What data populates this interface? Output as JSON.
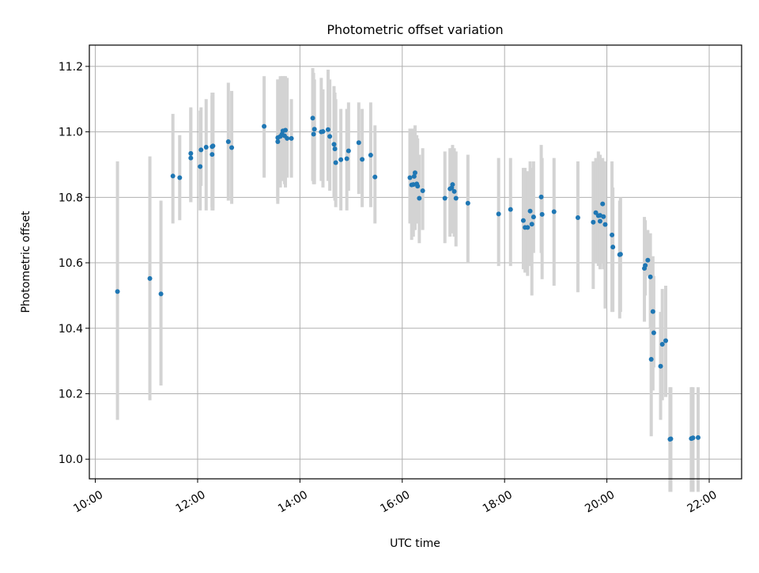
{
  "chart_data": {
    "type": "scatter",
    "title": "Photometric offset variation",
    "xlabel": "UTC time",
    "ylabel": "Photometric offset",
    "x_unit": "UTC hours",
    "xlim": [
      "09:53",
      "22:38"
    ],
    "ylim": [
      9.94,
      11.265
    ],
    "x_ticks": [
      "10:00",
      "12:00",
      "14:00",
      "16:00",
      "18:00",
      "20:00",
      "22:00"
    ],
    "y_ticks": [
      "10.0",
      "10.2",
      "10.4",
      "10.6",
      "10.8",
      "11.0",
      "11.2"
    ],
    "grid": true,
    "marker_color": "#1f77b4",
    "errorbar_color": "#d3d3d3",
    "series": [
      {
        "x": [
          "10:26",
          "11:04",
          "11:17",
          "11:31",
          "11:39",
          "11:52",
          "11:52",
          "12:03",
          "12:04",
          "12:10",
          "12:17",
          "12:17",
          "12:18",
          "12:36",
          "12:40",
          "13:18",
          "13:34",
          "13:34",
          "13:37",
          "13:39",
          "13:40",
          "13:42",
          "13:43",
          "13:45",
          "13:50",
          "14:15",
          "14:16",
          "14:17",
          "14:25",
          "14:27",
          "14:33",
          "14:35",
          "14:40",
          "14:41",
          "14:42",
          "14:48",
          "14:55",
          "14:57",
          "15:09",
          "15:13",
          "15:23",
          "15:28",
          "16:09",
          "16:11",
          "16:13",
          "16:14",
          "16:15",
          "16:17",
          "16:18",
          "16:20",
          "16:24",
          "16:50",
          "16:56",
          "16:58",
          "16:59",
          "17:01",
          "17:03",
          "17:17",
          "17:53",
          "18:07",
          "18:22",
          "18:24",
          "18:27",
          "18:30",
          "18:32",
          "18:34",
          "18:43",
          "18:44",
          "18:58",
          "19:26",
          "19:44",
          "19:47",
          "19:50",
          "19:52",
          "19:52",
          "19:55",
          "19:56",
          "19:58",
          "20:06",
          "20:07",
          "20:15",
          "20:16",
          "20:44",
          "20:45",
          "20:48",
          "20:51",
          "20:52",
          "20:54",
          "20:55",
          "21:03",
          "21:05",
          "21:09",
          "21:14",
          "21:15",
          "21:39",
          "21:40",
          "21:41",
          "21:47"
        ],
        "y": [
          10.512,
          10.552,
          10.505,
          10.865,
          10.86,
          10.934,
          10.92,
          10.894,
          10.945,
          10.953,
          10.955,
          10.931,
          10.957,
          10.97,
          10.952,
          11.017,
          10.97,
          10.982,
          10.986,
          10.993,
          11.003,
          10.988,
          11.005,
          10.98,
          10.98,
          11.042,
          10.993,
          11.008,
          11.0,
          11.001,
          11.007,
          10.986,
          10.962,
          10.948,
          10.906,
          10.915,
          10.918,
          10.942,
          10.967,
          10.916,
          10.929,
          10.862,
          10.86,
          10.838,
          10.839,
          10.864,
          10.875,
          10.841,
          10.834,
          10.797,
          10.82,
          10.797,
          10.826,
          10.829,
          10.839,
          10.818,
          10.797,
          10.782,
          10.749,
          10.763,
          10.729,
          10.708,
          10.708,
          10.758,
          10.718,
          10.74,
          10.801,
          10.748,
          10.756,
          10.738,
          10.724,
          10.753,
          10.744,
          10.727,
          10.745,
          10.78,
          10.741,
          10.717,
          10.685,
          10.648,
          10.625,
          10.626,
          10.583,
          10.592,
          10.608,
          10.557,
          10.305,
          10.451,
          10.386,
          10.284,
          10.351,
          10.362,
          10.061,
          10.062,
          10.063,
          10.064,
          10.065,
          10.066
        ],
        "yerr_low": [
          10.12,
          10.18,
          10.225,
          10.72,
          10.73,
          10.785,
          10.785,
          10.76,
          10.835,
          10.76,
          10.77,
          10.76,
          10.76,
          10.79,
          10.78,
          10.86,
          10.79,
          10.78,
          10.83,
          10.85,
          10.85,
          10.84,
          10.83,
          10.86,
          10.86,
          10.85,
          10.84,
          10.84,
          10.85,
          10.83,
          10.85,
          10.82,
          10.8,
          10.79,
          10.77,
          10.76,
          10.76,
          10.82,
          10.81,
          10.77,
          10.77,
          10.72,
          10.72,
          10.67,
          10.68,
          10.7,
          10.7,
          10.72,
          10.72,
          10.66,
          10.7,
          10.66,
          10.68,
          10.69,
          10.69,
          10.68,
          10.65,
          10.6,
          10.59,
          10.59,
          10.58,
          10.57,
          10.56,
          10.59,
          10.5,
          10.63,
          10.63,
          10.55,
          10.53,
          10.51,
          10.52,
          10.6,
          10.59,
          10.59,
          10.58,
          10.6,
          10.58,
          10.46,
          10.45,
          10.45,
          10.43,
          10.45,
          10.42,
          10.5,
          10.56,
          10.4,
          10.07,
          10.21,
          10.28,
          10.12,
          10.18,
          10.19,
          9.9,
          9.9,
          9.9,
          9.9,
          9.9,
          9.9
        ],
        "yerr_high": [
          10.91,
          10.925,
          10.79,
          11.055,
          10.99,
          11.075,
          11.07,
          11.065,
          11.075,
          11.1,
          11.11,
          11.12,
          11.12,
          11.15,
          11.125,
          11.17,
          11.16,
          11.16,
          11.17,
          11.17,
          11.17,
          11.17,
          11.17,
          11.165,
          11.1,
          11.195,
          11.18,
          11.16,
          11.165,
          11.13,
          11.19,
          11.16,
          11.14,
          11.12,
          11.1,
          11.07,
          11.07,
          11.09,
          11.09,
          11.07,
          11.09,
          11.02,
          11.01,
          11.01,
          11.01,
          11.01,
          11.02,
          10.99,
          10.98,
          10.93,
          10.95,
          10.94,
          10.95,
          10.95,
          10.96,
          10.95,
          10.94,
          10.93,
          10.92,
          10.92,
          10.89,
          10.89,
          10.88,
          10.91,
          10.89,
          10.91,
          10.96,
          10.92,
          10.92,
          10.91,
          10.91,
          10.92,
          10.94,
          10.93,
          10.93,
          10.92,
          10.91,
          10.91,
          10.91,
          10.83,
          10.79,
          10.8,
          10.74,
          10.73,
          10.7,
          10.69,
          10.54,
          10.62,
          10.56,
          10.45,
          10.52,
          10.53,
          10.22,
          10.22,
          10.22,
          10.22,
          10.22,
          10.22
        ]
      }
    ]
  }
}
